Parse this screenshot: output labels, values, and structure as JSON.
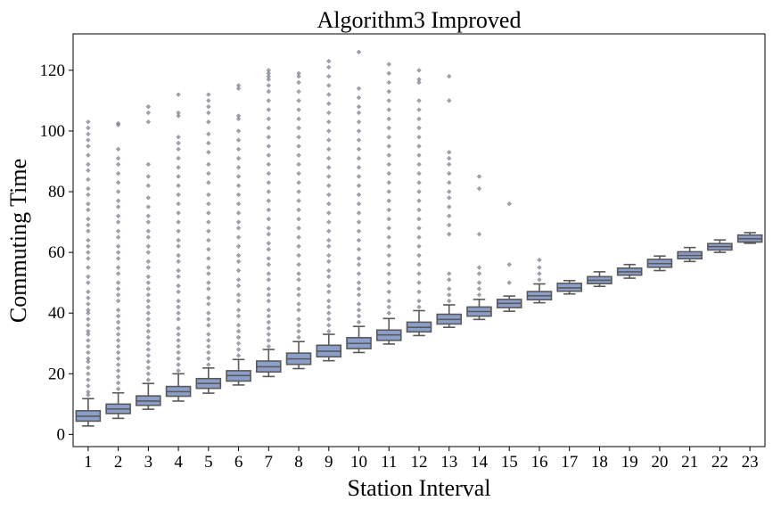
{
  "chart_data": {
    "type": "box",
    "title": "Algorithm3 Improved",
    "xlabel": "Station Interval",
    "ylabel": "Commuting Time",
    "categories": [
      "1",
      "2",
      "3",
      "4",
      "5",
      "6",
      "7",
      "8",
      "9",
      "10",
      "11",
      "12",
      "13",
      "14",
      "15",
      "16",
      "17",
      "18",
      "19",
      "20",
      "21",
      "22",
      "23"
    ],
    "ylim": [
      -4,
      132
    ],
    "yticks": [
      0,
      20,
      40,
      60,
      80,
      100,
      120
    ],
    "grid": false,
    "colors": {
      "box_fill": "#8c9fca",
      "box_edge": "#595959",
      "outlier": "#7f8594"
    },
    "boxes": [
      {
        "cat": "1",
        "whislo": 2.8,
        "q1": 4.4,
        "median": 6.0,
        "q3": 7.8,
        "whishi": 11.8,
        "fliers": [
          13,
          14,
          16,
          18,
          20,
          22,
          24,
          25,
          27,
          29,
          31,
          33,
          34,
          36,
          38,
          40,
          41,
          43,
          45,
          47,
          50,
          52,
          55,
          58,
          60,
          62,
          64,
          67,
          69,
          71,
          74,
          76,
          79,
          81,
          84,
          87,
          89,
          92,
          95,
          97,
          99,
          101,
          103
        ]
      },
      {
        "cat": "2",
        "whislo": 5.3,
        "q1": 6.9,
        "median": 8.4,
        "q3": 10.0,
        "whishi": 13.7,
        "fliers": [
          15,
          17,
          19,
          21,
          23,
          25,
          27,
          29,
          31,
          33,
          35,
          37,
          39,
          41,
          44,
          46,
          48,
          50,
          53,
          55,
          58,
          60,
          62,
          65,
          67,
          70,
          72,
          75,
          77,
          80,
          83,
          86,
          89,
          91,
          94,
          102,
          102.5
        ]
      },
      {
        "cat": "3",
        "whislo": 8.3,
        "q1": 9.6,
        "median": 11.0,
        "q3": 12.7,
        "whishi": 16.8,
        "fliers": [
          18,
          20,
          22,
          24,
          26,
          28,
          30,
          32,
          34,
          36,
          38,
          40,
          42,
          44,
          46,
          48,
          50,
          52,
          55,
          57,
          60,
          62,
          65,
          67,
          70,
          72,
          75,
          78,
          82,
          85,
          89,
          103,
          106,
          108
        ]
      },
      {
        "cat": "4",
        "whislo": 11.0,
        "q1": 12.6,
        "median": 14.1,
        "q3": 15.8,
        "whishi": 20.0,
        "fliers": [
          21,
          23,
          25,
          27,
          29,
          31,
          33,
          35,
          38,
          40,
          42,
          44,
          47,
          49,
          52,
          54,
          57,
          59,
          62,
          64,
          67,
          70,
          73,
          76,
          79,
          82,
          85,
          88,
          91,
          94,
          96,
          98,
          105,
          106,
          112
        ]
      },
      {
        "cat": "5",
        "whislo": 13.6,
        "q1": 15.2,
        "median": 16.8,
        "q3": 18.4,
        "whishi": 21.9,
        "fliers": [
          23,
          25,
          27,
          29,
          31,
          33,
          36,
          38,
          40,
          43,
          45,
          48,
          50,
          53,
          55,
          58,
          61,
          64,
          67,
          70,
          73,
          76,
          79,
          83,
          86,
          89,
          93,
          96,
          99,
          103,
          106,
          108,
          110,
          112
        ]
      },
      {
        "cat": "6",
        "whislo": 16.3,
        "q1": 17.6,
        "median": 19.4,
        "q3": 21.0,
        "whishi": 24.7,
        "fliers": [
          26,
          28,
          30,
          32,
          34,
          36,
          39,
          41,
          44,
          46,
          49,
          51,
          54,
          57,
          59,
          62,
          65,
          68,
          70,
          73,
          76,
          79,
          82,
          85,
          88,
          91,
          94,
          97,
          100,
          104,
          105,
          114,
          115
        ]
      },
      {
        "cat": "7",
        "whislo": 19.1,
        "q1": 20.6,
        "median": 22.3,
        "q3": 24.2,
        "whishi": 28.0,
        "fliers": [
          29,
          31,
          33,
          35,
          37,
          39,
          41,
          44,
          46,
          48,
          51,
          53,
          56,
          58,
          61,
          63,
          66,
          68,
          71,
          74,
          77,
          80,
          83,
          86,
          89,
          92,
          95,
          98,
          101,
          104,
          107,
          110,
          113,
          115,
          117,
          118,
          119,
          120
        ]
      },
      {
        "cat": "8",
        "whislo": 21.7,
        "q1": 23.1,
        "median": 24.9,
        "q3": 26.8,
        "whishi": 30.6,
        "fliers": [
          32,
          34,
          36,
          38,
          41,
          43,
          46,
          48,
          51,
          53,
          56,
          59,
          62,
          65,
          68,
          71,
          74,
          77,
          80,
          83,
          86,
          89,
          92,
          95,
          98,
          101,
          104,
          107,
          110,
          113,
          116,
          118,
          119
        ]
      },
      {
        "cat": "9",
        "whislo": 24.3,
        "q1": 25.6,
        "median": 27.4,
        "q3": 29.4,
        "whishi": 33.0,
        "fliers": [
          34,
          36,
          38,
          40,
          42,
          44,
          47,
          49,
          52,
          54,
          57,
          59,
          62,
          64,
          67,
          70,
          73,
          76,
          79,
          82,
          85,
          88,
          91,
          94,
          97,
          100,
          103,
          106,
          109,
          112,
          115,
          118,
          121,
          123
        ]
      },
      {
        "cat": "10",
        "whislo": 27.0,
        "q1": 28.3,
        "median": 30.0,
        "q3": 31.9,
        "whishi": 35.6,
        "fliers": [
          37,
          39,
          41,
          43,
          46,
          48,
          50,
          53,
          56,
          58,
          61,
          64,
          67,
          70,
          73,
          76,
          79,
          82,
          85,
          88,
          91,
          94,
          97,
          100,
          103,
          106,
          108,
          111,
          114,
          126
        ]
      },
      {
        "cat": "11",
        "whislo": 29.8,
        "q1": 31.0,
        "median": 32.8,
        "q3": 34.4,
        "whishi": 38.2,
        "fliers": [
          40,
          42,
          44,
          47,
          50,
          53,
          56,
          59,
          62,
          65,
          68,
          71,
          74,
          77,
          80,
          83,
          86,
          89,
          92,
          95,
          98,
          101,
          104,
          107,
          110,
          113,
          116,
          119,
          122
        ]
      },
      {
        "cat": "12",
        "whislo": 32.6,
        "q1": 33.8,
        "median": 35.3,
        "q3": 37.0,
        "whishi": 40.8,
        "fliers": [
          42,
          44,
          47,
          50,
          53,
          56,
          59,
          62,
          65,
          68,
          71,
          74,
          77,
          80,
          83,
          86,
          89,
          92,
          95,
          98,
          101,
          104,
          107,
          110,
          116,
          117,
          120
        ]
      },
      {
        "cat": "13",
        "whislo": 35.3,
        "q1": 36.4,
        "median": 37.9,
        "q3": 39.6,
        "whishi": 42.7,
        "fliers": [
          44,
          46,
          48,
          51,
          53,
          66,
          69,
          72,
          75,
          78,
          80,
          83,
          86,
          89,
          91,
          93,
          110,
          118
        ]
      },
      {
        "cat": "14",
        "whislo": 37.9,
        "q1": 39.0,
        "median": 40.5,
        "q3": 42.0,
        "whishi": 44.5,
        "fliers": [
          46,
          48,
          50,
          53,
          55,
          66,
          81,
          85
        ]
      },
      {
        "cat": "15",
        "whislo": 40.6,
        "q1": 41.8,
        "median": 43.2,
        "q3": 44.5,
        "whishi": 45.6,
        "fliers": [
          50,
          56,
          76
        ]
      },
      {
        "cat": "16",
        "whislo": 43.4,
        "q1": 44.4,
        "median": 45.7,
        "q3": 47.1,
        "whishi": 49.6,
        "fliers": [
          51,
          53,
          55,
          57.5
        ]
      },
      {
        "cat": "17",
        "whislo": 46.3,
        "q1": 47.2,
        "median": 48.3,
        "q3": 49.8,
        "whishi": 50.7,
        "fliers": []
      },
      {
        "cat": "18",
        "whislo": 48.8,
        "q1": 49.7,
        "median": 50.8,
        "q3": 52.0,
        "whishi": 53.6,
        "fliers": []
      },
      {
        "cat": "19",
        "whislo": 51.5,
        "q1": 52.5,
        "median": 53.6,
        "q3": 54.8,
        "whishi": 56.0,
        "fliers": []
      },
      {
        "cat": "20",
        "whislo": 54.0,
        "q1": 55.1,
        "median": 56.3,
        "q3": 57.7,
        "whishi": 58.8,
        "fliers": []
      },
      {
        "cat": "21",
        "whislo": 57.0,
        "q1": 57.9,
        "median": 59.0,
        "q3": 60.2,
        "whishi": 61.6,
        "fliers": []
      },
      {
        "cat": "22",
        "whislo": 60.0,
        "q1": 60.8,
        "median": 61.9,
        "q3": 62.9,
        "whishi": 64.1,
        "fliers": []
      },
      {
        "cat": "23",
        "whislo": 63.0,
        "q1": 63.4,
        "median": 64.5,
        "q3": 65.7,
        "whishi": 66.5,
        "fliers": []
      }
    ]
  }
}
